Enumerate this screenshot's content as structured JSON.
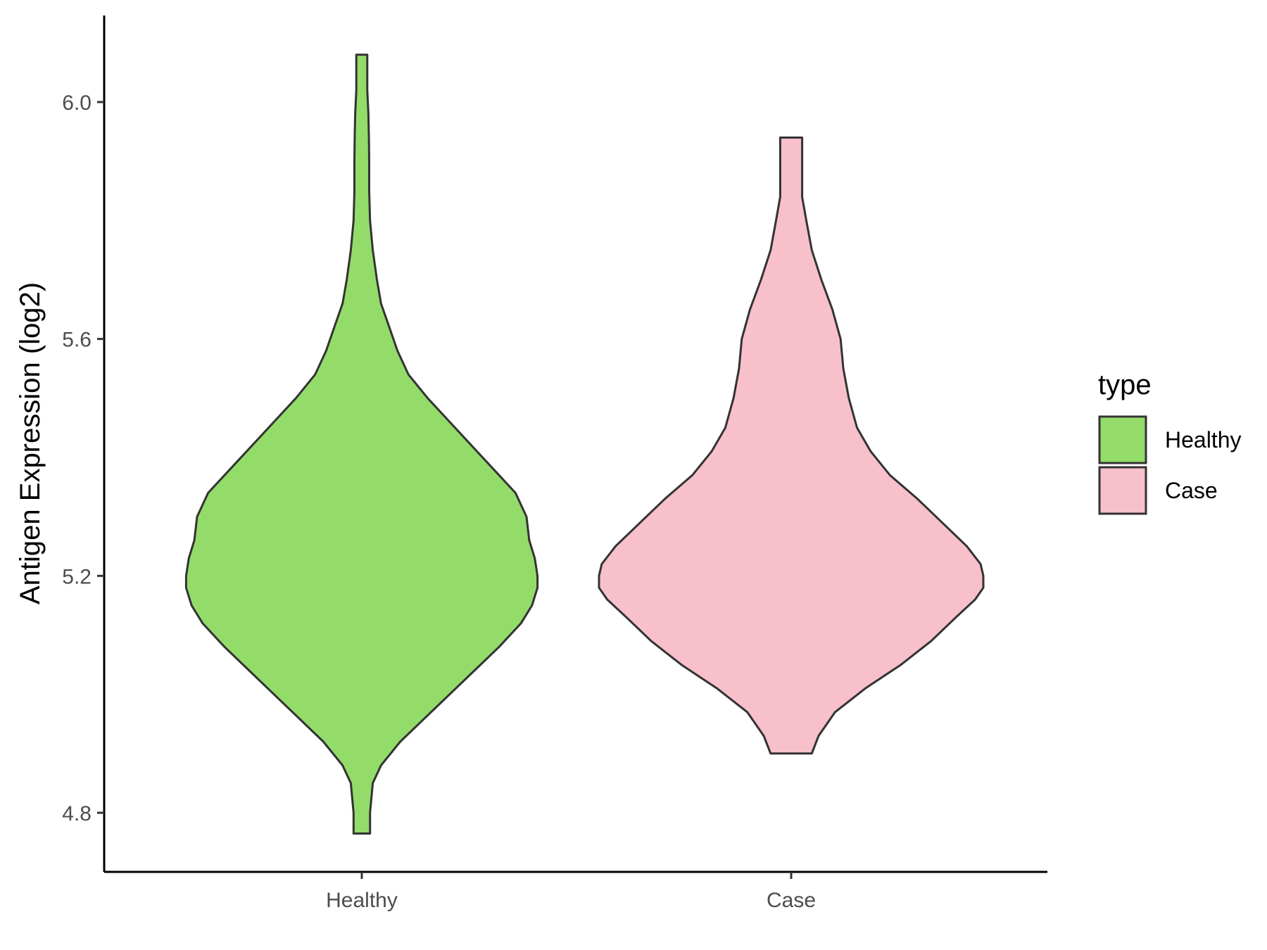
{
  "chart_data": {
    "type": "violin",
    "ylabel": "Antigen Expression (log2)",
    "xlabel": "",
    "categories": [
      "Healthy",
      "Case"
    ],
    "ylim": [
      4.65,
      6.15
    ],
    "yticks": [
      4.8,
      5.2,
      5.6,
      6.0
    ],
    "ytick_labels": [
      "4.8",
      "5.2",
      "5.6",
      "6.0"
    ],
    "grid": false,
    "legend": {
      "title": "type",
      "position": "right",
      "entries": [
        {
          "label": "Healthy",
          "color": "#93dc6a"
        },
        {
          "label": "Case",
          "color": "#f7c0cb"
        }
      ]
    },
    "series": [
      {
        "name": "Healthy",
        "color": "#93dc6a",
        "min": 4.765,
        "max": 6.08,
        "density": [
          [
            4.765,
            0.03
          ],
          [
            4.8,
            0.03
          ],
          [
            4.85,
            0.04
          ],
          [
            4.88,
            0.07
          ],
          [
            4.92,
            0.14
          ],
          [
            4.96,
            0.23
          ],
          [
            5.0,
            0.32
          ],
          [
            5.04,
            0.41
          ],
          [
            5.08,
            0.5
          ],
          [
            5.12,
            0.58
          ],
          [
            5.15,
            0.62
          ],
          [
            5.18,
            0.64
          ],
          [
            5.2,
            0.64
          ],
          [
            5.23,
            0.63
          ],
          [
            5.26,
            0.61
          ],
          [
            5.3,
            0.6
          ],
          [
            5.34,
            0.56
          ],
          [
            5.38,
            0.48
          ],
          [
            5.42,
            0.4
          ],
          [
            5.46,
            0.32
          ],
          [
            5.5,
            0.24
          ],
          [
            5.54,
            0.17
          ],
          [
            5.58,
            0.13
          ],
          [
            5.62,
            0.1
          ],
          [
            5.66,
            0.07
          ],
          [
            5.7,
            0.055
          ],
          [
            5.75,
            0.04
          ],
          [
            5.8,
            0.03
          ],
          [
            5.85,
            0.027
          ],
          [
            5.9,
            0.027
          ],
          [
            5.94,
            0.026
          ],
          [
            5.98,
            0.024
          ],
          [
            6.02,
            0.02
          ],
          [
            6.08,
            0.02
          ]
        ]
      },
      {
        "name": "Case",
        "color": "#f7c0cb",
        "min": 4.9,
        "max": 5.94,
        "density": [
          [
            4.9,
            0.075
          ],
          [
            4.93,
            0.1
          ],
          [
            4.97,
            0.16
          ],
          [
            5.01,
            0.27
          ],
          [
            5.05,
            0.4
          ],
          [
            5.09,
            0.51
          ],
          [
            5.13,
            0.6
          ],
          [
            5.16,
            0.67
          ],
          [
            5.18,
            0.7
          ],
          [
            5.2,
            0.7
          ],
          [
            5.22,
            0.69
          ],
          [
            5.25,
            0.64
          ],
          [
            5.29,
            0.55
          ],
          [
            5.33,
            0.46
          ],
          [
            5.37,
            0.36
          ],
          [
            5.41,
            0.29
          ],
          [
            5.45,
            0.24
          ],
          [
            5.5,
            0.21
          ],
          [
            5.55,
            0.19
          ],
          [
            5.6,
            0.18
          ],
          [
            5.65,
            0.15
          ],
          [
            5.7,
            0.11
          ],
          [
            5.75,
            0.075
          ],
          [
            5.8,
            0.055
          ],
          [
            5.84,
            0.04
          ],
          [
            5.88,
            0.04
          ],
          [
            5.94,
            0.04
          ]
        ]
      }
    ]
  }
}
